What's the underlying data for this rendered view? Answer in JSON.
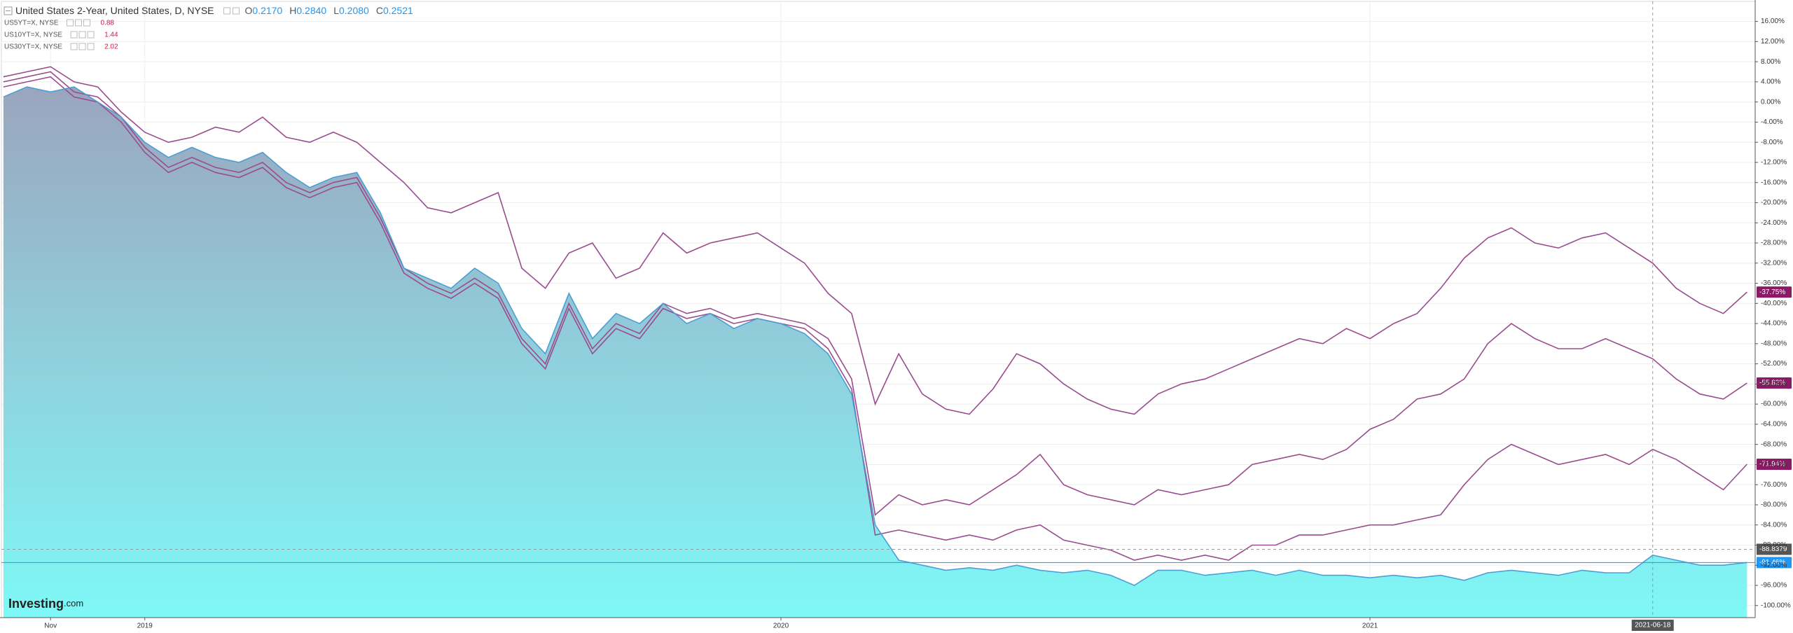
{
  "chart_data": {
    "type": "line",
    "categories": [
      null,
      null,
      "Nov",
      null,
      null,
      null,
      "2019",
      null,
      null,
      null,
      null,
      null,
      null,
      null,
      null,
      null,
      null,
      null,
      null,
      null,
      null,
      null,
      null,
      null,
      null,
      null,
      null,
      null,
      null,
      null,
      null,
      null,
      null,
      "2020",
      null,
      null,
      null,
      null,
      null,
      null,
      null,
      null,
      null,
      null,
      null,
      null,
      null,
      null,
      null,
      null,
      null,
      null,
      null,
      null,
      null,
      null,
      null,
      null,
      "2021",
      null,
      null,
      null,
      null,
      null,
      null,
      null,
      null,
      null,
      null,
      null,
      "2021-06-18",
      null,
      null,
      null,
      null
    ],
    "series": [
      {
        "name": "United States 2-Year, United States, D, NYSE",
        "style": "area",
        "color": "#4b9fd5",
        "ohlc": [
          {
            "label": "O",
            "value": "0.2170"
          },
          {
            "label": "H",
            "value": "0.2840"
          },
          {
            "label": "L",
            "value": "0.2080"
          },
          {
            "label": "C",
            "value": "0.2521"
          }
        ],
        "end_label": "-91.46%",
        "end_color": "#2196f3",
        "values": [
          1,
          3,
          2,
          3,
          0,
          -3,
          -8,
          -11,
          -9,
          -11,
          -12,
          -10,
          -14,
          -17,
          -15,
          -14,
          -22,
          -33,
          -35,
          -37,
          -33,
          -36,
          -45,
          -50,
          -38,
          -47,
          -42,
          -44,
          -40,
          -44,
          -42,
          -45,
          -43,
          -44,
          -46,
          -50,
          -58,
          -84,
          -91,
          -92,
          -93,
          -92.5,
          -93,
          -92,
          -93,
          -93.5,
          -93,
          -94,
          -96,
          -93,
          -93,
          -94,
          -93.5,
          -93,
          -94,
          -93,
          -94,
          -94,
          -94.5,
          -94,
          -94.5,
          -94,
          -95,
          -93.5,
          -93,
          -93.5,
          -94,
          -93,
          -93.5,
          -93.5,
          -90,
          -91,
          -92,
          -92,
          -91.46
        ]
      },
      {
        "name": "US5YT=X, NYSE",
        "style": "line",
        "color": "#9a4c8e",
        "legend_value": 0.88,
        "legend_value_color": "#c2185b",
        "end_label": "-71.94%",
        "end_color": "#8b1a66",
        "values": [
          3,
          4,
          5,
          1,
          0,
          -4,
          -10,
          -14,
          -12,
          -14,
          -15,
          -13,
          -17,
          -19,
          -17,
          -16,
          -24,
          -34,
          -37,
          -39,
          -36,
          -39,
          -48,
          -53,
          -41,
          -50,
          -45,
          -47,
          -41,
          -43,
          -42,
          -44,
          -43,
          -44,
          -45,
          -49,
          -57,
          -86,
          -85,
          -86,
          -87,
          -86,
          -87,
          -85,
          -84,
          -87,
          -88,
          -89,
          -91,
          -90,
          -91,
          -90,
          -91,
          -88,
          -88,
          -86,
          -86,
          -85,
          -84,
          -84,
          -83,
          -82,
          -76,
          -71,
          -68,
          -70,
          -72,
          -71,
          -70,
          -72,
          -69,
          -71,
          -74,
          -77,
          -71.94
        ]
      },
      {
        "name": "US10YT=X, NYSE",
        "style": "line",
        "color": "#9a4c8e",
        "legend_value": 1.44,
        "legend_value_color": "#c2185b",
        "end_label": "-55.82%",
        "end_color": "#8b1a66",
        "values": [
          4,
          5,
          6,
          2,
          1,
          -3,
          -9,
          -13,
          -11,
          -13,
          -14,
          -12,
          -16,
          -18,
          -16,
          -15,
          -23,
          -33,
          -36,
          -38,
          -35,
          -38,
          -47,
          -52,
          -40,
          -49,
          -44,
          -46,
          -40,
          -42,
          -41,
          -43,
          -42,
          -43,
          -44,
          -47,
          -55,
          -82,
          -78,
          -80,
          -79,
          -80,
          -77,
          -74,
          -70,
          -76,
          -78,
          -79,
          -80,
          -77,
          -78,
          -77,
          -76,
          -72,
          -71,
          -70,
          -71,
          -69,
          -65,
          -63,
          -59,
          -58,
          -55,
          -48,
          -44,
          -47,
          -49,
          -49,
          -47,
          -49,
          -51,
          -55,
          -58,
          -59,
          -55.82
        ]
      },
      {
        "name": "US30YT=X, NYSE",
        "style": "line",
        "color": "#9a4c8e",
        "legend_value": 2.02,
        "legend_value_color": "#d81b3c",
        "end_label": "-37.75%",
        "end_color": "#8b1a66",
        "values": [
          5,
          6,
          7,
          4,
          3,
          -2,
          -6,
          -8,
          -7,
          -5,
          -6,
          -3,
          -7,
          -8,
          -6,
          -8,
          -12,
          -16,
          -21,
          -22,
          -20,
          -18,
          -33,
          -37,
          -30,
          -28,
          -35,
          -33,
          -26,
          -30,
          -28,
          -27,
          -26,
          -29,
          -32,
          -38,
          -42,
          -60,
          -50,
          -58,
          -61,
          -62,
          -57,
          -50,
          -52,
          -56,
          -59,
          -61,
          -62,
          -58,
          -56,
          -55,
          -53,
          -51,
          -49,
          -47,
          -48,
          -45,
          -47,
          -44,
          -42,
          -37,
          -31,
          -27,
          -25,
          -28,
          -29,
          -27,
          -26,
          -29,
          -32,
          -37,
          -40,
          -42,
          -37.75
        ]
      }
    ],
    "ylim": [
      -102.4,
      19.7
    ],
    "yticks": [
      {
        "value": 16,
        "label": "16.00%"
      },
      {
        "value": 12,
        "label": "12.00%"
      },
      {
        "value": 8,
        "label": "8.00%"
      },
      {
        "value": 4,
        "label": "4.00%"
      },
      {
        "value": 0,
        "label": "0.00%"
      },
      {
        "value": -4,
        "label": "-4.00%"
      },
      {
        "value": -8,
        "label": "-8.00%"
      },
      {
        "value": -12,
        "label": "-12.00%"
      },
      {
        "value": -16,
        "label": "-16.00%"
      },
      {
        "value": -20,
        "label": "-20.00%"
      },
      {
        "value": -24,
        "label": "-24.00%"
      },
      {
        "value": -28,
        "label": "-28.00%"
      },
      {
        "value": -32,
        "label": "-32.00%"
      },
      {
        "value": -36,
        "label": "-36.00%"
      },
      {
        "value": -40,
        "label": "-40.00%"
      },
      {
        "value": -44,
        "label": "-44.00%"
      },
      {
        "value": -48,
        "label": "-48.00%"
      },
      {
        "value": -52,
        "label": "-52.00%"
      },
      {
        "value": -56,
        "label": "-56.00%"
      },
      {
        "value": -60,
        "label": "-60.00%"
      },
      {
        "value": -64,
        "label": "-64.00%"
      },
      {
        "value": -68,
        "label": "-68.00%"
      },
      {
        "value": -72,
        "label": "-72.00%"
      },
      {
        "value": -76,
        "label": "-76.00%"
      },
      {
        "value": -80,
        "label": "-80.00%"
      },
      {
        "value": -84,
        "label": "-84.00%"
      },
      {
        "value": -88,
        "label": "-88.00%"
      },
      {
        "value": -92,
        "label": "-92.00%"
      },
      {
        "value": -96,
        "label": "-96.00%"
      },
      {
        "value": -100,
        "label": "-100.00%"
      }
    ],
    "grid": true,
    "crosshair": {
      "x": "2021-06-18",
      "y": -88.8379
    },
    "watermark": {
      "brand": "Investing",
      "suffix": ".com"
    }
  }
}
